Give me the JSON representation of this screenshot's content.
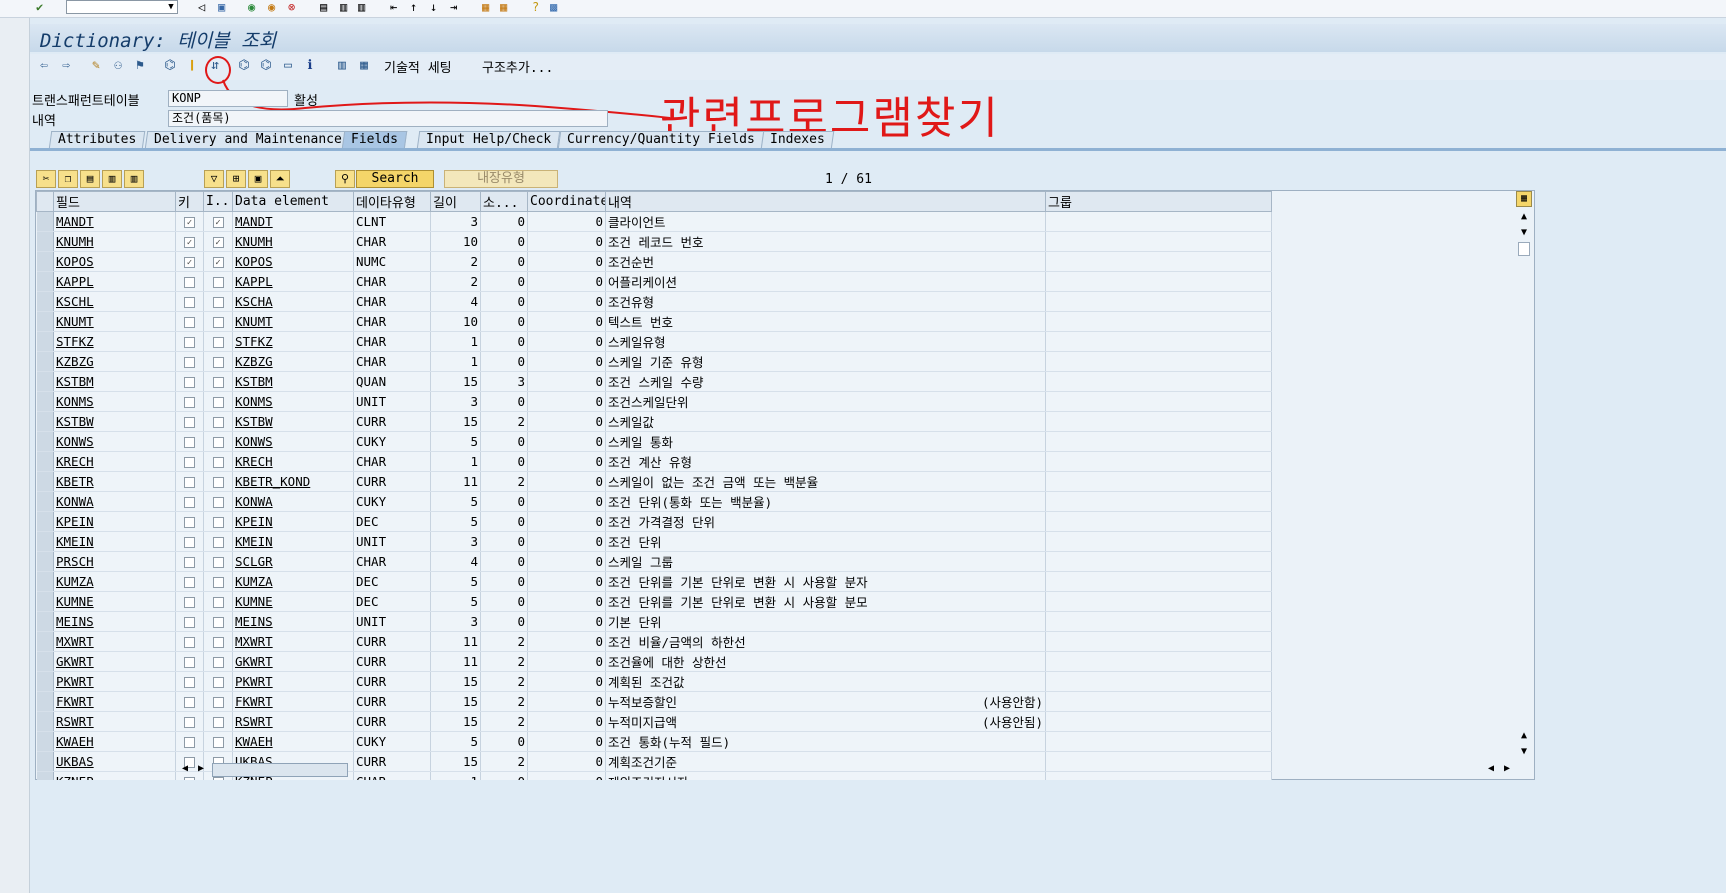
{
  "window": {
    "title": "Dictionary: 테이블 조회"
  },
  "toolbar": {
    "technical_settings": "기술적 세팅",
    "append_structure": "구조추가..."
  },
  "fields": {
    "table_label": "트랜스패런트테이블",
    "table_value": "KONP",
    "status": "활성",
    "desc_label": "내역",
    "desc_value": "조건(품목)"
  },
  "annotation": {
    "text": "관련프로그램찾기"
  },
  "tabs": [
    {
      "label": "Attributes"
    },
    {
      "label": "Delivery and Maintenance"
    },
    {
      "label": "Fields"
    },
    {
      "label": "Input Help/Check"
    },
    {
      "label": "Currency/Quantity Fields"
    },
    {
      "label": "Indexes"
    }
  ],
  "active_tab": "Fields",
  "grid_toolbar": {
    "search": "Search",
    "layout": "내장유형",
    "page": "1 / 61"
  },
  "grid": {
    "columns": [
      "필드",
      "키",
      "I...",
      "Data element",
      "데이타유형",
      "길이",
      "소...",
      "Coordinate",
      "내역",
      "그룹"
    ],
    "rows": [
      {
        "field": "MANDT",
        "key": true,
        "init": true,
        "de": "MANDT",
        "type": "CLNT",
        "len": "3",
        "dec": "0",
        "coord": "0",
        "desc": "클라이언트",
        "note": ""
      },
      {
        "field": "KNUMH",
        "key": true,
        "init": true,
        "de": "KNUMH",
        "type": "CHAR",
        "len": "10",
        "dec": "0",
        "coord": "0",
        "desc": "조건 레코드 번호",
        "note": ""
      },
      {
        "field": "KOPOS",
        "key": true,
        "init": true,
        "de": "KOPOS",
        "type": "NUMC",
        "len": "2",
        "dec": "0",
        "coord": "0",
        "desc": "조건순번",
        "note": ""
      },
      {
        "field": "KAPPL",
        "key": false,
        "init": false,
        "de": "KAPPL",
        "type": "CHAR",
        "len": "2",
        "dec": "0",
        "coord": "0",
        "desc": "어플리케이션",
        "note": ""
      },
      {
        "field": "KSCHL",
        "key": false,
        "init": false,
        "de": "KSCHA",
        "type": "CHAR",
        "len": "4",
        "dec": "0",
        "coord": "0",
        "desc": "조건유형",
        "note": ""
      },
      {
        "field": "KNUMT",
        "key": false,
        "init": false,
        "de": "KNUMT",
        "type": "CHAR",
        "len": "10",
        "dec": "0",
        "coord": "0",
        "desc": "텍스트 번호",
        "note": ""
      },
      {
        "field": "STFKZ",
        "key": false,
        "init": false,
        "de": "STFKZ",
        "type": "CHAR",
        "len": "1",
        "dec": "0",
        "coord": "0",
        "desc": "스케일유형",
        "note": ""
      },
      {
        "field": "KZBZG",
        "key": false,
        "init": false,
        "de": "KZBZG",
        "type": "CHAR",
        "len": "1",
        "dec": "0",
        "coord": "0",
        "desc": "스케일 기준 유형",
        "note": ""
      },
      {
        "field": "KSTBM",
        "key": false,
        "init": false,
        "de": "KSTBM",
        "type": "QUAN",
        "len": "15",
        "dec": "3",
        "coord": "0",
        "desc": "조건 스케일 수량",
        "note": ""
      },
      {
        "field": "KONMS",
        "key": false,
        "init": false,
        "de": "KONMS",
        "type": "UNIT",
        "len": "3",
        "dec": "0",
        "coord": "0",
        "desc": "조건스케일단위",
        "note": ""
      },
      {
        "field": "KSTBW",
        "key": false,
        "init": false,
        "de": "KSTBW",
        "type": "CURR",
        "len": "15",
        "dec": "2",
        "coord": "0",
        "desc": "스케일값",
        "note": ""
      },
      {
        "field": "KONWS",
        "key": false,
        "init": false,
        "de": "KONWS",
        "type": "CUKY",
        "len": "5",
        "dec": "0",
        "coord": "0",
        "desc": "스케일 통화",
        "note": ""
      },
      {
        "field": "KRECH",
        "key": false,
        "init": false,
        "de": "KRECH",
        "type": "CHAR",
        "len": "1",
        "dec": "0",
        "coord": "0",
        "desc": "조건 계산 유형",
        "note": ""
      },
      {
        "field": "KBETR",
        "key": false,
        "init": false,
        "de": "KBETR_KOND",
        "type": "CURR",
        "len": "11",
        "dec": "2",
        "coord": "0",
        "desc": "스케일이 없는 조건 금액 또는 백분율",
        "note": ""
      },
      {
        "field": "KONWA",
        "key": false,
        "init": false,
        "de": "KONWA",
        "type": "CUKY",
        "len": "5",
        "dec": "0",
        "coord": "0",
        "desc": "조건 단위(통화 또는 백분율)",
        "note": ""
      },
      {
        "field": "KPEIN",
        "key": false,
        "init": false,
        "de": "KPEIN",
        "type": "DEC",
        "len": "5",
        "dec": "0",
        "coord": "0",
        "desc": "조건 가격결정 단위",
        "note": ""
      },
      {
        "field": "KMEIN",
        "key": false,
        "init": false,
        "de": "KMEIN",
        "type": "UNIT",
        "len": "3",
        "dec": "0",
        "coord": "0",
        "desc": "조건 단위",
        "note": ""
      },
      {
        "field": "PRSCH",
        "key": false,
        "init": false,
        "de": "SCLGR",
        "type": "CHAR",
        "len": "4",
        "dec": "0",
        "coord": "0",
        "desc": "스케일 그룹",
        "note": ""
      },
      {
        "field": "KUMZA",
        "key": false,
        "init": false,
        "de": "KUMZA",
        "type": "DEC",
        "len": "5",
        "dec": "0",
        "coord": "0",
        "desc": "조건 단위를 기본 단위로 변환 시 사용할 분자",
        "note": ""
      },
      {
        "field": "KUMNE",
        "key": false,
        "init": false,
        "de": "KUMNE",
        "type": "DEC",
        "len": "5",
        "dec": "0",
        "coord": "0",
        "desc": "조건 단위를 기본 단위로 변환 시 사용할 분모",
        "note": ""
      },
      {
        "field": "MEINS",
        "key": false,
        "init": false,
        "de": "MEINS",
        "type": "UNIT",
        "len": "3",
        "dec": "0",
        "coord": "0",
        "desc": "기본 단위",
        "note": ""
      },
      {
        "field": "MXWRT",
        "key": false,
        "init": false,
        "de": "MXWRT",
        "type": "CURR",
        "len": "11",
        "dec": "2",
        "coord": "0",
        "desc": "조건 비율/금액의 하한선",
        "note": ""
      },
      {
        "field": "GKWRT",
        "key": false,
        "init": false,
        "de": "GKWRT",
        "type": "CURR",
        "len": "11",
        "dec": "2",
        "coord": "0",
        "desc": "조건율에 대한 상한선",
        "note": ""
      },
      {
        "field": "PKWRT",
        "key": false,
        "init": false,
        "de": "PKWRT",
        "type": "CURR",
        "len": "15",
        "dec": "2",
        "coord": "0",
        "desc": "계획된 조건값",
        "note": ""
      },
      {
        "field": "FKWRT",
        "key": false,
        "init": false,
        "de": "FKWRT",
        "type": "CURR",
        "len": "15",
        "dec": "2",
        "coord": "0",
        "desc": "누적보증할인",
        "note": "(사용안함)"
      },
      {
        "field": "RSWRT",
        "key": false,
        "init": false,
        "de": "RSWRT",
        "type": "CURR",
        "len": "15",
        "dec": "2",
        "coord": "0",
        "desc": "누적미지급액",
        "note": "(사용안됨)"
      },
      {
        "field": "KWAEH",
        "key": false,
        "init": false,
        "de": "KWAEH",
        "type": "CUKY",
        "len": "5",
        "dec": "0",
        "coord": "0",
        "desc": "조건 통화(누적 필드)",
        "note": ""
      },
      {
        "field": "UKBAS",
        "key": false,
        "init": false,
        "de": "UKBAS",
        "type": "CURR",
        "len": "15",
        "dec": "2",
        "coord": "0",
        "desc": "계획조건기준",
        "note": ""
      },
      {
        "field": "KZNEP",
        "key": false,
        "init": false,
        "de": "KZNEP",
        "type": "CHAR",
        "len": "1",
        "dec": "0",
        "coord": "0",
        "desc": "제외조건지시자",
        "note": ""
      }
    ]
  }
}
